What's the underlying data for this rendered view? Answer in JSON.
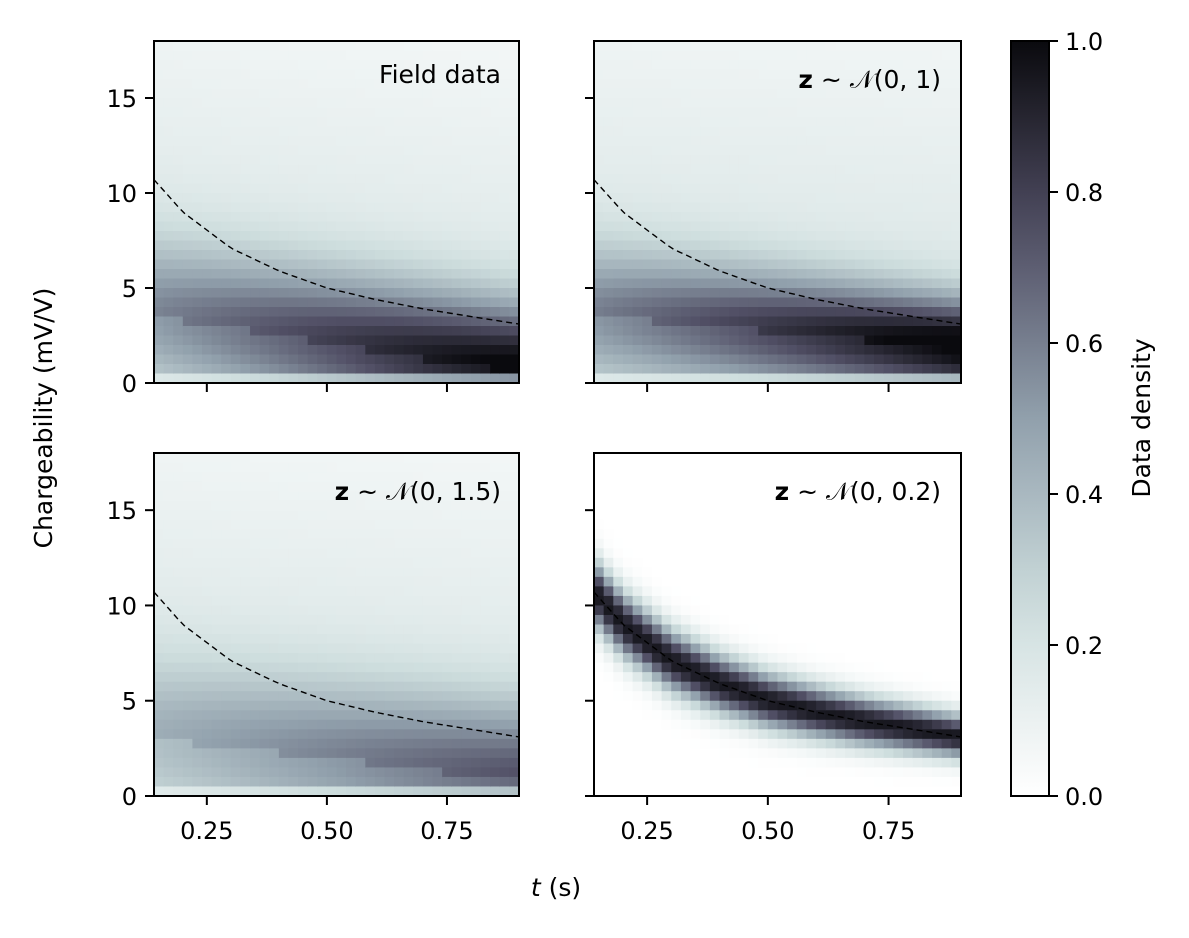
{
  "chart_data": {
    "type": "heatmap",
    "layout": "2x2 grid with shared colorbar",
    "xlabel_var": "t",
    "xlabel_unit": " (s)",
    "ylabel": "Chargeability (mV/V)",
    "x_range": [
      0.14,
      0.9
    ],
    "y_range": [
      0,
      18
    ],
    "x_ticks": [
      "0.25",
      "0.50",
      "0.75"
    ],
    "x_tick_values": [
      0.25,
      0.5,
      0.75
    ],
    "y_ticks": [
      "0",
      "5",
      "10",
      "15"
    ],
    "y_tick_values": [
      0,
      5,
      10,
      15
    ],
    "colormap": "bone_r",
    "colorbar": {
      "label": "Data density",
      "range": [
        0,
        1
      ],
      "ticks": [
        "0.0",
        "0.2",
        "0.4",
        "0.6",
        "0.8",
        "1.0"
      ],
      "tick_values": [
        0,
        0.2,
        0.4,
        0.6,
        0.8,
        1.0
      ]
    },
    "reference_curve": {
      "style": "dashed",
      "color": "#000000",
      "t": [
        0.14,
        0.2,
        0.3,
        0.4,
        0.5,
        0.6,
        0.7,
        0.8,
        0.9
      ],
      "chargeability": [
        10.7,
        9.0,
        7.1,
        5.9,
        5.0,
        4.4,
        3.9,
        3.5,
        3.1
      ]
    },
    "panels": [
      {
        "title_plain": "Field data",
        "title_var": "",
        "title_dist": "",
        "density_center": [
          3.5,
          0.5
        ],
        "density_spread": [
          2.8,
          2.5
        ],
        "peak_density": 0.86,
        "background_density": 0.2
      },
      {
        "title_plain": "",
        "title_var": "z",
        "title_dist": " ~ 𝒩(0, 1)",
        "density_center": [
          3.5,
          1.8
        ],
        "density_spread": [
          2.6,
          1.8
        ],
        "peak_density": 0.9,
        "background_density": 0.2
      },
      {
        "title_plain": "",
        "title_var": "z",
        "title_dist": " ~ 𝒩(0, 1.5)",
        "density_center": [
          3.0,
          0.8
        ],
        "density_spread": [
          3.0,
          2.8
        ],
        "peak_density": 0.55,
        "background_density": 0.2
      },
      {
        "title_plain": "",
        "title_var": "z",
        "title_dist": " ~ 𝒩(0, 0.2)",
        "density_center": [
          10.7,
          3.0
        ],
        "density_spread": [
          1.2,
          0.8
        ],
        "peak_density": 0.95,
        "background_density": 0.0
      }
    ]
  }
}
